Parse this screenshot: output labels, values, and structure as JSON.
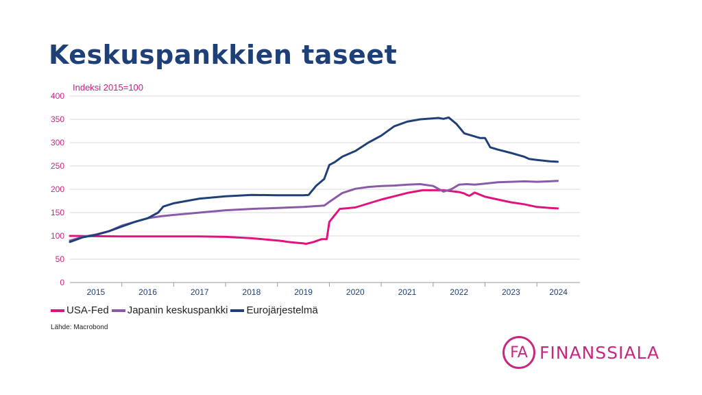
{
  "title": "Keskuspankkien taseet",
  "source": "Lähde: Macrobond",
  "logo": {
    "mark": "FA",
    "text": "FINANSSIALA"
  },
  "colors": {
    "usa_fed": "#e0137e",
    "japan": "#8a5aa8",
    "euro": "#1f3f77",
    "title": "#1f3f77",
    "annotation": "#d4157f"
  },
  "chart_data": {
    "type": "line",
    "annotation": "Indeksi 2015=100",
    "ylim": [
      0,
      400
    ],
    "yticks": [
      0,
      50,
      100,
      150,
      200,
      250,
      300,
      350,
      400
    ],
    "xlim": [
      2015.0,
      2024.83
    ],
    "xticks": [
      "2015",
      "2016",
      "2017",
      "2018",
      "2019",
      "2020",
      "2021",
      "2022",
      "2023",
      "2024"
    ],
    "grid": true,
    "legend_position": "bottom-left",
    "series": [
      {
        "name": "USA-Fed",
        "color": "#e0137e",
        "x": [
          2015.0,
          2016.0,
          2017.0,
          2017.5,
          2018.0,
          2018.5,
          2019.0,
          2019.1,
          2019.2,
          2019.4,
          2019.5,
          2019.55,
          2019.7,
          2019.8,
          2019.85,
          2019.95,
          2020.0,
          2020.2,
          2020.5,
          2021.0,
          2021.5,
          2021.8,
          2022.0,
          2022.2,
          2022.5,
          2022.6,
          2022.65,
          2022.7,
          2022.8,
          2023.0,
          2023.25,
          2023.5,
          2023.75,
          2024.0,
          2024.25,
          2024.4
        ],
        "y": [
          100,
          99,
          99,
          99,
          98,
          95,
          90,
          89,
          87,
          85,
          84,
          83,
          87,
          91,
          93,
          93,
          130,
          158,
          161,
          178,
          192,
          198,
          198,
          198,
          194,
          191,
          188,
          186,
          193,
          184,
          178,
          172,
          168,
          162,
          160,
          159
        ]
      },
      {
        "name": "Japanin keskuspankki",
        "color": "#8a5aa8",
        "x": [
          2015.0,
          2015.25,
          2015.5,
          2015.75,
          2016.0,
          2016.25,
          2016.5,
          2016.75,
          2017.0,
          2017.5,
          2018.0,
          2018.5,
          2019.0,
          2019.5,
          2019.9,
          2020.0,
          2020.25,
          2020.5,
          2020.75,
          2021.0,
          2021.25,
          2021.5,
          2021.75,
          2022.0,
          2022.2,
          2022.35,
          2022.5,
          2022.65,
          2022.8,
          2023.0,
          2023.25,
          2023.5,
          2023.75,
          2024.0,
          2024.25,
          2024.4
        ],
        "y": [
          90,
          98,
          103,
          110,
          122,
          130,
          138,
          142,
          145,
          150,
          155,
          158,
          160,
          162,
          165,
          173,
          192,
          201,
          205,
          207,
          208,
          210,
          211,
          207,
          195,
          200,
          210,
          211,
          210,
          212,
          215,
          216,
          217,
          216,
          217,
          218
        ]
      },
      {
        "name": "Eurojärjestelmä",
        "color": "#1f3f77",
        "x": [
          2015.0,
          2015.25,
          2015.5,
          2015.75,
          2016.0,
          2016.25,
          2016.5,
          2016.7,
          2016.8,
          2017.0,
          2017.5,
          2018.0,
          2018.5,
          2019.0,
          2019.5,
          2019.6,
          2019.75,
          2019.9,
          2020.0,
          2020.1,
          2020.25,
          2020.5,
          2020.75,
          2021.0,
          2021.25,
          2021.5,
          2021.75,
          2022.0,
          2022.1,
          2022.2,
          2022.3,
          2022.45,
          2022.6,
          2022.75,
          2022.9,
          2023.0,
          2023.1,
          2023.25,
          2023.5,
          2023.75,
          2023.85,
          2024.0,
          2024.25,
          2024.4
        ],
        "y": [
          87,
          97,
          102,
          110,
          120,
          130,
          138,
          150,
          163,
          170,
          180,
          185,
          188,
          187,
          187,
          188,
          208,
          222,
          252,
          258,
          270,
          282,
          300,
          315,
          335,
          345,
          350,
          352,
          353,
          351,
          354,
          340,
          320,
          315,
          310,
          310,
          290,
          285,
          278,
          270,
          265,
          263,
          260,
          259
        ]
      }
    ]
  }
}
